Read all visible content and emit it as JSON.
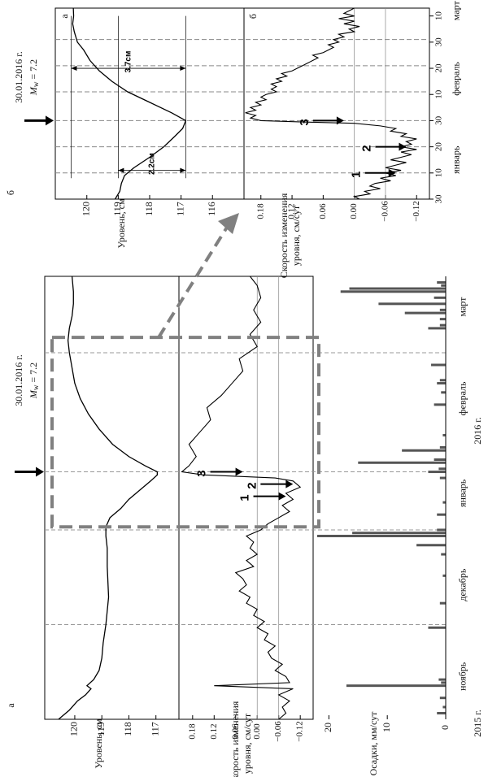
{
  "chart_data": [
    {
      "id": "a",
      "panel_label": "а",
      "type": "line",
      "event": {
        "date": "30.01.2016 г.",
        "magnitude_label": "M",
        "magnitude_sub": "w",
        "magnitude_value": " = 7.2",
        "day": 81
      },
      "year_labels": [
        "2015 г.",
        "2016 г."
      ],
      "month_labels": [
        {
          "text": "ноябрь",
          "day": 14
        },
        {
          "text": "декабрь",
          "day": 44
        },
        {
          "text": "январь",
          "day": 74
        },
        {
          "text": "февраль",
          "day": 105
        },
        {
          "text": "март",
          "day": 135
        }
      ],
      "dashed_days": [
        31,
        62,
        81,
        120
      ],
      "zoom_box_days": [
        63,
        125
      ],
      "level": {
        "ylabel": "Уровень, см",
        "ylim": [
          116.3,
          120.9
        ],
        "ticks": [
          117,
          118,
          119,
          120
        ],
        "points": [
          [
            0,
            120.6
          ],
          [
            3,
            120.2
          ],
          [
            6,
            119.9
          ],
          [
            8,
            119.6
          ],
          [
            10,
            119.4
          ],
          [
            11,
            119.55
          ],
          [
            13,
            119.3
          ],
          [
            16,
            119.1
          ],
          [
            20,
            119.0
          ],
          [
            25,
            118.95
          ],
          [
            31,
            118.85
          ],
          [
            40,
            118.75
          ],
          [
            50,
            118.8
          ],
          [
            56,
            118.8
          ],
          [
            60,
            118.85
          ],
          [
            63,
            118.85
          ],
          [
            66,
            118.7
          ],
          [
            69,
            118.3
          ],
          [
            72,
            118.0
          ],
          [
            75,
            117.6
          ],
          [
            78,
            117.2
          ],
          [
            80,
            116.95
          ],
          [
            81,
            116.95
          ],
          [
            83,
            117.4
          ],
          [
            86,
            118.0
          ],
          [
            90,
            118.6
          ],
          [
            95,
            119.1
          ],
          [
            100,
            119.5
          ],
          [
            105,
            119.8
          ],
          [
            110,
            120.0
          ],
          [
            115,
            120.1
          ],
          [
            120,
            120.2
          ],
          [
            124,
            120.25
          ],
          [
            128,
            120.2
          ],
          [
            132,
            120.1
          ],
          [
            136,
            120.05
          ],
          [
            140,
            120.05
          ],
          [
            145,
            120.1
          ]
        ]
      },
      "rate": {
        "ylabel_lines": [
          "Скорость изменения",
          "уровня, см/сут"
        ],
        "ylim": [
          -0.14,
          0.2
        ],
        "ticks": [
          -0.12,
          -0.06,
          0.0,
          0.06,
          0.12,
          0.18
        ],
        "tick_labels": [
          "−0.12",
          "−0.06",
          "0.00",
          "0.06",
          "0.12",
          "0.18"
        ],
        "ref_lines": [
          0,
          -0.06
        ],
        "points": [
          [
            0,
            -0.06
          ],
          [
            2,
            -0.08
          ],
          [
            4,
            -0.07
          ],
          [
            6,
            -0.09
          ],
          [
            8,
            -0.06
          ],
          [
            10,
            -0.1
          ],
          [
            11,
            0.12
          ],
          [
            12,
            -0.09
          ],
          [
            14,
            -0.08
          ],
          [
            16,
            -0.05
          ],
          [
            18,
            -0.07
          ],
          [
            20,
            -0.04
          ],
          [
            22,
            -0.03
          ],
          [
            24,
            -0.05
          ],
          [
            26,
            -0.02
          ],
          [
            28,
            -0.03
          ],
          [
            30,
            0.0
          ],
          [
            32,
            -0.02
          ],
          [
            34,
            0.01
          ],
          [
            36,
            0.0
          ],
          [
            38,
            0.03
          ],
          [
            40,
            0.02
          ],
          [
            42,
            0.05
          ],
          [
            44,
            0.03
          ],
          [
            46,
            0.04
          ],
          [
            48,
            0.06
          ],
          [
            50,
            0.01
          ],
          [
            52,
            0.03
          ],
          [
            54,
            0.0
          ],
          [
            56,
            0.02
          ],
          [
            58,
            0.01
          ],
          [
            60,
            0.03
          ],
          [
            62,
            -0.01
          ],
          [
            64,
            -0.03
          ],
          [
            66,
            -0.06
          ],
          [
            68,
            -0.09
          ],
          [
            70,
            -0.07
          ],
          [
            72,
            -0.1
          ],
          [
            74,
            -0.08
          ],
          [
            76,
            -0.12
          ],
          [
            78,
            -0.1
          ],
          [
            79,
            -0.05
          ],
          [
            80,
            0.15
          ],
          [
            81,
            0.21
          ],
          [
            83,
            0.19
          ],
          [
            86,
            0.17
          ],
          [
            90,
            0.19
          ],
          [
            94,
            0.16
          ],
          [
            98,
            0.13
          ],
          [
            102,
            0.14
          ],
          [
            106,
            0.1
          ],
          [
            110,
            0.07
          ],
          [
            114,
            0.04
          ],
          [
            118,
            0.05
          ],
          [
            122,
            0.0
          ],
          [
            126,
            0.02
          ],
          [
            130,
            -0.01
          ],
          [
            134,
            0.01
          ],
          [
            138,
            -0.01
          ],
          [
            142,
            0.0
          ],
          [
            145,
            0.02
          ]
        ]
      },
      "arrows": [
        {
          "label": "1",
          "day": 73,
          "value": -0.08
        },
        {
          "label": "2",
          "day": 77,
          "value": -0.1
        },
        {
          "label": "3",
          "day": 81,
          "value": 0.04
        }
      ],
      "precip": {
        "ylabel": "Осадки, мм/сут",
        "ylim": [
          0,
          22
        ],
        "ticks": [
          0,
          10,
          20
        ],
        "bars": [
          [
            2,
            1.5
          ],
          [
            4,
            0.5
          ],
          [
            7,
            1
          ],
          [
            11,
            17
          ],
          [
            12,
            0.8
          ],
          [
            13,
            1.2
          ],
          [
            30,
            3
          ],
          [
            38,
            1
          ],
          [
            47,
            0.5
          ],
          [
            54,
            0.8
          ],
          [
            57,
            5
          ],
          [
            60,
            22
          ],
          [
            61,
            16
          ],
          [
            62,
            1.5
          ],
          [
            67,
            1.5
          ],
          [
            71,
            0.5
          ],
          [
            79,
            1
          ],
          [
            81,
            3
          ],
          [
            82,
            1.2
          ],
          [
            84,
            15
          ],
          [
            85,
            2
          ],
          [
            88,
            7.5
          ],
          [
            89,
            1
          ],
          [
            93,
            0.5
          ],
          [
            103,
            2
          ],
          [
            107,
            0.8
          ],
          [
            110,
            1.5
          ],
          [
            111,
            1
          ],
          [
            116,
            2.5
          ],
          [
            128,
            3
          ],
          [
            129,
            1
          ],
          [
            131,
            1
          ],
          [
            133,
            7
          ],
          [
            134,
            1
          ],
          [
            136,
            11.5
          ],
          [
            138,
            2
          ],
          [
            140,
            18
          ],
          [
            141,
            16.5
          ],
          [
            142,
            0.8
          ],
          [
            143,
            1.5
          ]
        ]
      }
    },
    {
      "id": "b",
      "panel_label": "б",
      "type": "line",
      "event": {
        "date": "30.01.2016 г.",
        "magnitude_label": "M",
        "magnitude_sub": "w",
        "magnitude_value": " = 7.2",
        "day": 30
      },
      "month_labels": [
        {
          "text": "январь",
          "day": 15
        },
        {
          "text": "февраль",
          "day": 46
        },
        {
          "text": "март",
          "day": 72
        }
      ],
      "x_ticks": [
        0,
        10,
        20,
        30,
        40,
        50,
        60,
        70
      ],
      "x_tick_labels": [
        "30",
        "10",
        "20",
        "30",
        "10",
        "20",
        "30",
        "10"
      ],
      "dashed_days": [
        10,
        20,
        30,
        41,
        51,
        61
      ],
      "level": {
        "panel_letter": "а",
        "ylabel": "Уровень, см",
        "ylim": [
          115.1,
          120.9
        ],
        "ticks": [
          116,
          117,
          118,
          119,
          120
        ],
        "tick_labels": [
          "116",
          "117",
          "118",
          "119",
          "120"
        ],
        "points": [
          [
            0,
            119.1
          ],
          [
            3,
            118.95
          ],
          [
            6,
            118.9
          ],
          [
            9,
            118.8
          ],
          [
            12,
            118.5
          ],
          [
            16,
            118.0
          ],
          [
            20,
            117.55
          ],
          [
            24,
            117.2
          ],
          [
            27,
            116.95
          ],
          [
            30,
            116.85
          ],
          [
            33,
            117.3
          ],
          [
            37,
            118.0
          ],
          [
            41,
            118.7
          ],
          [
            45,
            119.2
          ],
          [
            49,
            119.6
          ],
          [
            53,
            119.9
          ],
          [
            57,
            120.1
          ],
          [
            60,
            120.3
          ],
          [
            64,
            120.4
          ],
          [
            67,
            120.45
          ],
          [
            70,
            120.42
          ],
          [
            73,
            120.43
          ]
        ],
        "dims": [
          {
            "label": "2.2см",
            "day": 11,
            "from": 119.0,
            "to": 116.85
          },
          {
            "label": "3.7см",
            "day": 50,
            "from": 120.5,
            "to": 116.85
          }
        ],
        "dim_lines_level": [
          119.0,
          116.85,
          120.5
        ]
      },
      "rate": {
        "panel_letter": "б",
        "ylabel_lines": [
          "Скорость изменения",
          "уровня, см/сут"
        ],
        "ylim": [
          -0.14,
          0.2
        ],
        "ticks": [
          -0.12,
          -0.06,
          0.0,
          0.06,
          0.12,
          0.18
        ],
        "tick_labels": [
          "−0.12",
          "−0.06",
          "0.00",
          "0.06",
          "0.12",
          "0.18"
        ],
        "ref_lines": [
          0,
          -0.06
        ],
        "points": [
          [
            0,
            -0.01
          ],
          [
            1,
            0.0
          ],
          [
            2,
            -0.03
          ],
          [
            3,
            -0.02
          ],
          [
            4,
            -0.05
          ],
          [
            5,
            -0.03
          ],
          [
            6,
            -0.04
          ],
          [
            7,
            -0.07
          ],
          [
            8,
            -0.05
          ],
          [
            9,
            -0.08
          ],
          [
            10,
            -0.06
          ],
          [
            11,
            -0.09
          ],
          [
            12,
            -0.06
          ],
          [
            13,
            -0.08
          ],
          [
            14,
            -0.1
          ],
          [
            15,
            -0.07
          ],
          [
            16,
            -0.09
          ],
          [
            17,
            -0.11
          ],
          [
            18,
            -0.09
          ],
          [
            19,
            -0.12
          ],
          [
            20,
            -0.09
          ],
          [
            21,
            -0.11
          ],
          [
            22,
            -0.1
          ],
          [
            23,
            -0.12
          ],
          [
            24,
            -0.09
          ],
          [
            25,
            -0.1
          ],
          [
            26,
            -0.07
          ],
          [
            27,
            -0.08
          ],
          [
            28,
            -0.05
          ],
          [
            29,
            0.0
          ],
          [
            29.5,
            0.1
          ],
          [
            30,
            0.18
          ],
          [
            31,
            0.2
          ],
          [
            32,
            0.19
          ],
          [
            33,
            0.21
          ],
          [
            34,
            0.19
          ],
          [
            35,
            0.2
          ],
          [
            36,
            0.18
          ],
          [
            37,
            0.19
          ],
          [
            38,
            0.17
          ],
          [
            39,
            0.18
          ],
          [
            40,
            0.17
          ],
          [
            41,
            0.15
          ],
          [
            42,
            0.16
          ],
          [
            43,
            0.15
          ],
          [
            44,
            0.16
          ],
          [
            45,
            0.14
          ],
          [
            46,
            0.15
          ],
          [
            47,
            0.13
          ],
          [
            48,
            0.14
          ],
          [
            49,
            0.12
          ],
          [
            50,
            0.11
          ],
          [
            51,
            0.1
          ],
          [
            52,
            0.09
          ],
          [
            53,
            0.08
          ],
          [
            54,
            0.07
          ],
          [
            55,
            0.08
          ],
          [
            56,
            0.06
          ],
          [
            57,
            0.05
          ],
          [
            58,
            0.04
          ],
          [
            59,
            0.05
          ],
          [
            60,
            0.03
          ],
          [
            61,
            0.04
          ],
          [
            62,
            0.02
          ],
          [
            63,
            0.03
          ],
          [
            64,
            0.0
          ],
          [
            65,
            0.01
          ],
          [
            66,
            -0.01
          ],
          [
            67,
            0.02
          ],
          [
            68,
            0.0
          ],
          [
            69,
            0.03
          ],
          [
            70,
            0.0
          ],
          [
            71,
            0.02
          ],
          [
            72,
            0.01
          ],
          [
            73,
            0.0
          ]
        ]
      },
      "arrows": [
        {
          "label": "1",
          "day": 10,
          "value": -0.08
        },
        {
          "label": "2",
          "day": 20,
          "value": -0.1
        },
        {
          "label": "3",
          "day": 30,
          "value": 0.02
        }
      ]
    }
  ]
}
